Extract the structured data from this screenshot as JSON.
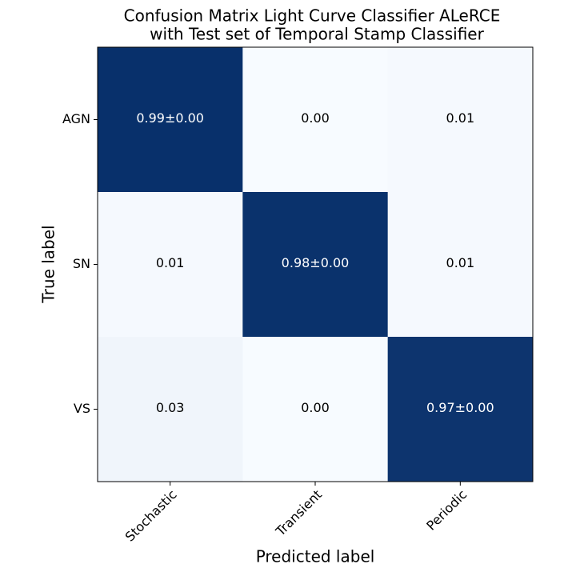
{
  "chart_data": {
    "type": "heatmap",
    "title": [
      "Confusion Matrix Light Curve Classifier ALeRCE",
      "with Test set of Temporal Stamp Classifier"
    ],
    "x_label": "Predicted label",
    "y_label": "True label",
    "x_categories": [
      "Stochastic",
      "Transient",
      "Periodic"
    ],
    "y_categories": [
      "AGN",
      "SN",
      "VS"
    ],
    "values": [
      [
        0.99,
        0.0,
        0.01
      ],
      [
        0.01,
        0.98,
        0.01
      ],
      [
        0.03,
        0.0,
        0.97
      ]
    ],
    "value_labels": [
      [
        "0.99±0.00",
        "0.00",
        "0.01"
      ],
      [
        "0.01",
        "0.98±0.00",
        "0.01"
      ],
      [
        "0.03",
        "0.00",
        "0.97±0.00"
      ]
    ],
    "colormap": [
      "#f7fbff",
      "#08306b"
    ],
    "clim": [
      0,
      0.99
    ]
  }
}
